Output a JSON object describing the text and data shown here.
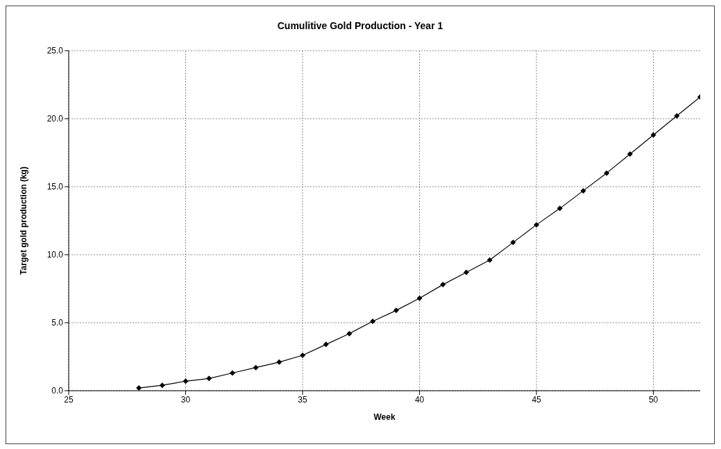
{
  "chart_data": {
    "type": "line",
    "title": "Cumulitive Gold Production - Year 1",
    "xlabel": "Week",
    "ylabel": "Target gold production (kg)",
    "x": [
      28,
      29,
      30,
      31,
      32,
      33,
      34,
      35,
      36,
      37,
      38,
      39,
      40,
      41,
      42,
      43,
      44,
      45,
      46,
      47,
      48,
      49,
      50,
      51,
      52
    ],
    "series": [
      {
        "color": "#000000",
        "values": [
          0.2,
          0.4,
          0.7,
          0.9,
          1.3,
          1.7,
          2.1,
          2.6,
          3.4,
          4.2,
          5.1,
          5.9,
          6.8,
          7.8,
          8.7,
          9.6,
          10.9,
          12.2,
          13.4,
          14.7,
          16.0,
          17.4,
          18.8,
          20.2,
          21.6
        ]
      }
    ],
    "xlim": [
      25,
      52
    ],
    "xticks": [
      25,
      30,
      35,
      40,
      45,
      50
    ],
    "ylim": [
      0,
      25
    ],
    "yticks": [
      {
        "value": 0,
        "label": "0.0"
      },
      {
        "value": 5,
        "label": "5.0"
      },
      {
        "value": 10,
        "label": "10.0"
      },
      {
        "value": 15,
        "label": "15.0"
      },
      {
        "value": 20,
        "label": "20.0"
      },
      {
        "value": 25,
        "label": "25.0"
      }
    ],
    "grid": true,
    "marker": "diamond",
    "line_style": "solid"
  }
}
